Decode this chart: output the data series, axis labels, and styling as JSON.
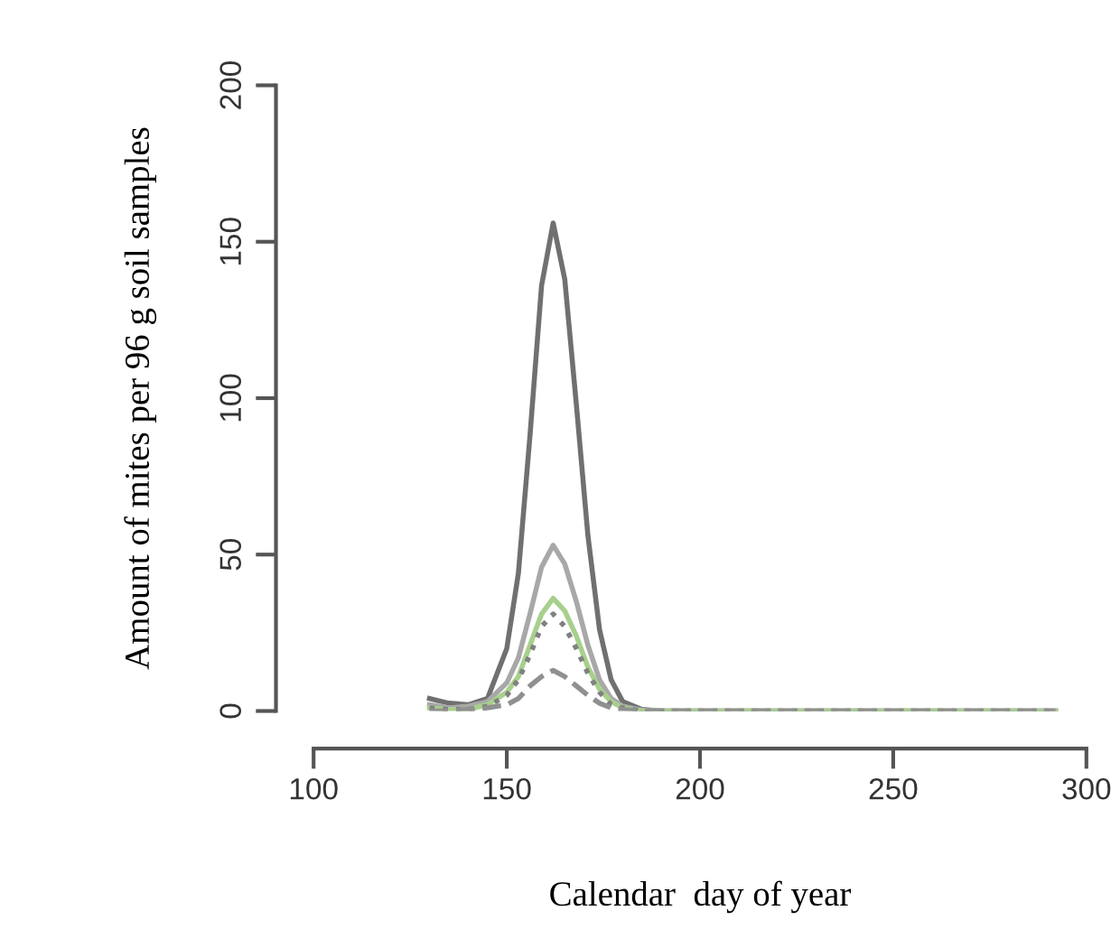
{
  "chart_data": {
    "type": "line",
    "xlabel": "Calendar  day of year",
    "ylabel": "Amount of mites per 96 g soil samples",
    "x": [
      130,
      135,
      140,
      145,
      150,
      153,
      156,
      159,
      162,
      165,
      168,
      171,
      174,
      177,
      180,
      185,
      190,
      200,
      250,
      292
    ],
    "series": [
      {
        "color": "#707070",
        "line_style": "solid",
        "values": [
          4,
          2.5,
          2,
          4,
          20,
          44,
          88,
          136,
          156,
          138,
          98,
          56,
          26,
          10,
          3,
          0.5,
          0,
          0,
          0,
          0
        ]
      },
      {
        "color": "#a8a8a8",
        "line_style": "solid",
        "values": [
          2,
          1,
          1.5,
          3,
          9,
          17,
          31,
          46,
          53,
          47,
          35,
          21,
          10,
          4,
          1.5,
          0.3,
          0,
          0,
          0,
          0
        ]
      },
      {
        "color": "#a8d08d",
        "line_style": "solid",
        "values": [
          1,
          0.5,
          0.5,
          2,
          6,
          11,
          21,
          31,
          36,
          32,
          24,
          14,
          7,
          3,
          1,
          0,
          0,
          0,
          0,
          0
        ]
      },
      {
        "color": "#808080",
        "line_style": "dotted",
        "values": [
          1,
          0.5,
          0.5,
          1.5,
          5,
          10,
          18,
          27,
          31,
          27,
          20,
          12,
          6,
          2,
          1,
          0,
          0,
          0,
          0,
          0
        ]
      },
      {
        "color": "#909090",
        "line_style": "dashed",
        "values": [
          0,
          0,
          0.5,
          1,
          2,
          4,
          8,
          11,
          13,
          11,
          8,
          5,
          2.5,
          1,
          0.5,
          0,
          0,
          0,
          0,
          0
        ]
      }
    ],
    "xlim": [
      100,
      300
    ],
    "xticks": [
      100,
      150,
      200,
      250,
      300
    ],
    "ylim": [
      0,
      200
    ],
    "yticks": [
      0,
      50,
      100,
      150,
      200
    ],
    "grid": false,
    "marker": "none"
  }
}
